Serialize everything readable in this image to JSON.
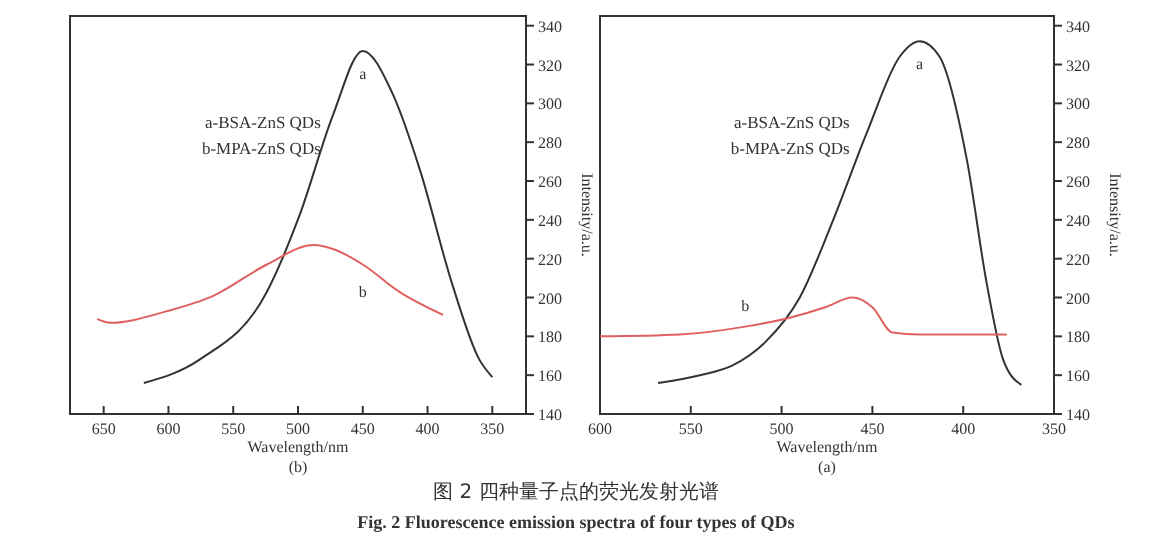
{
  "chart_data": [
    {
      "type": "line",
      "xlabel": "Wavelength/nm",
      "ylabel": "Intensity/a.u.",
      "xlim": [
        676,
        324
      ],
      "ylim": [
        140,
        345
      ],
      "xticks": [
        650,
        600,
        550,
        500,
        450,
        400,
        350
      ],
      "yticks": [
        140,
        160,
        180,
        200,
        220,
        240,
        260,
        280,
        300,
        320,
        340
      ],
      "grid": false,
      "marker": "none",
      "line_style": "solid",
      "series": [
        {
          "name": "a",
          "color": "#333333",
          "x": [
            619,
            576,
            524,
            499,
            473,
            450,
            427,
            406,
            381,
            360,
            350
          ],
          "values": [
            156,
            168,
            203,
            242,
            294,
            327,
            305,
            266,
            207,
            168,
            159
          ]
        },
        {
          "name": "b",
          "color": "#e06060",
          "x": [
            655,
            645,
            601,
            565,
            524,
            488,
            473,
            450,
            422,
            388
          ],
          "values": [
            189,
            187,
            193,
            201,
            217,
            227,
            225,
            217,
            203,
            191
          ]
        }
      ],
      "annotations": [
        "(b)",
        "a-BSA-ZnS QDs",
        "b-MPA-ZnS QDs"
      ]
    },
    {
      "type": "line",
      "xlabel": "Wavelength/nm",
      "ylabel": "Intensity/a.u.",
      "xlim": [
        600,
        350
      ],
      "ylim": [
        140,
        345
      ],
      "xticks": [
        600,
        550,
        500,
        450,
        400,
        350
      ],
      "yticks": [
        140,
        160,
        180,
        200,
        220,
        240,
        260,
        280,
        300,
        320,
        340
      ],
      "grid": false,
      "marker": "none",
      "line_style": "solid",
      "series": [
        {
          "name": "a",
          "color": "#333333",
          "x": [
            568,
            545,
            527,
            509,
            490,
            472,
            453,
            435,
            424,
            413,
            398,
            387,
            378,
            368
          ],
          "values": [
            156,
            160,
            165,
            177,
            200,
            239,
            285,
            324,
            332,
            324,
            271,
            207,
            168,
            155
          ]
        },
        {
          "name": "b",
          "color": "#e06060",
          "x": [
            600,
            556,
            520,
            494,
            476,
            461,
            450,
            439,
            424,
            376
          ],
          "values": [
            180,
            181,
            185,
            190,
            195,
            200,
            195,
            182,
            181,
            181
          ]
        }
      ],
      "annotations": [
        "(a)",
        "a-BSA-ZnS QDs",
        "b-MPA-ZnS QDs",
        "图 2  四种量子点的荧光发射光谱",
        "Fig. 2  Fluorescence emission spectra of four types of QDs"
      ]
    }
  ]
}
